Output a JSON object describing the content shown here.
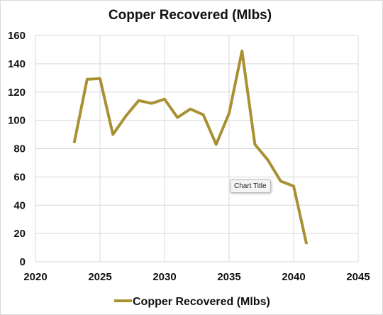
{
  "chart_data": {
    "type": "line",
    "title": "Copper Recovered (Mlbs)",
    "xlabel": "",
    "ylabel": "",
    "xlim": [
      2020,
      2045
    ],
    "ylim": [
      0,
      160
    ],
    "x_ticks": [
      2020,
      2025,
      2030,
      2035,
      2040,
      2045
    ],
    "y_ticks": [
      0,
      20,
      40,
      60,
      80,
      100,
      120,
      140,
      160
    ],
    "grid": true,
    "legend": "bottom",
    "series": [
      {
        "name": "Copper Recovered (Mlbs)",
        "color": "#a99133",
        "x": [
          2023,
          2024,
          2025,
          2026,
          2027,
          2028,
          2029,
          2030,
          2031,
          2032,
          2033,
          2034,
          2035,
          2036,
          2037,
          2038,
          2039,
          2040,
          2041
        ],
        "y": [
          84,
          129,
          129.5,
          90,
          103,
          114,
          112,
          115,
          102,
          108,
          104,
          83,
          105,
          149,
          83,
          72,
          57,
          53.5,
          12.5
        ]
      }
    ]
  },
  "tooltip": {
    "text": "Chart Title"
  }
}
